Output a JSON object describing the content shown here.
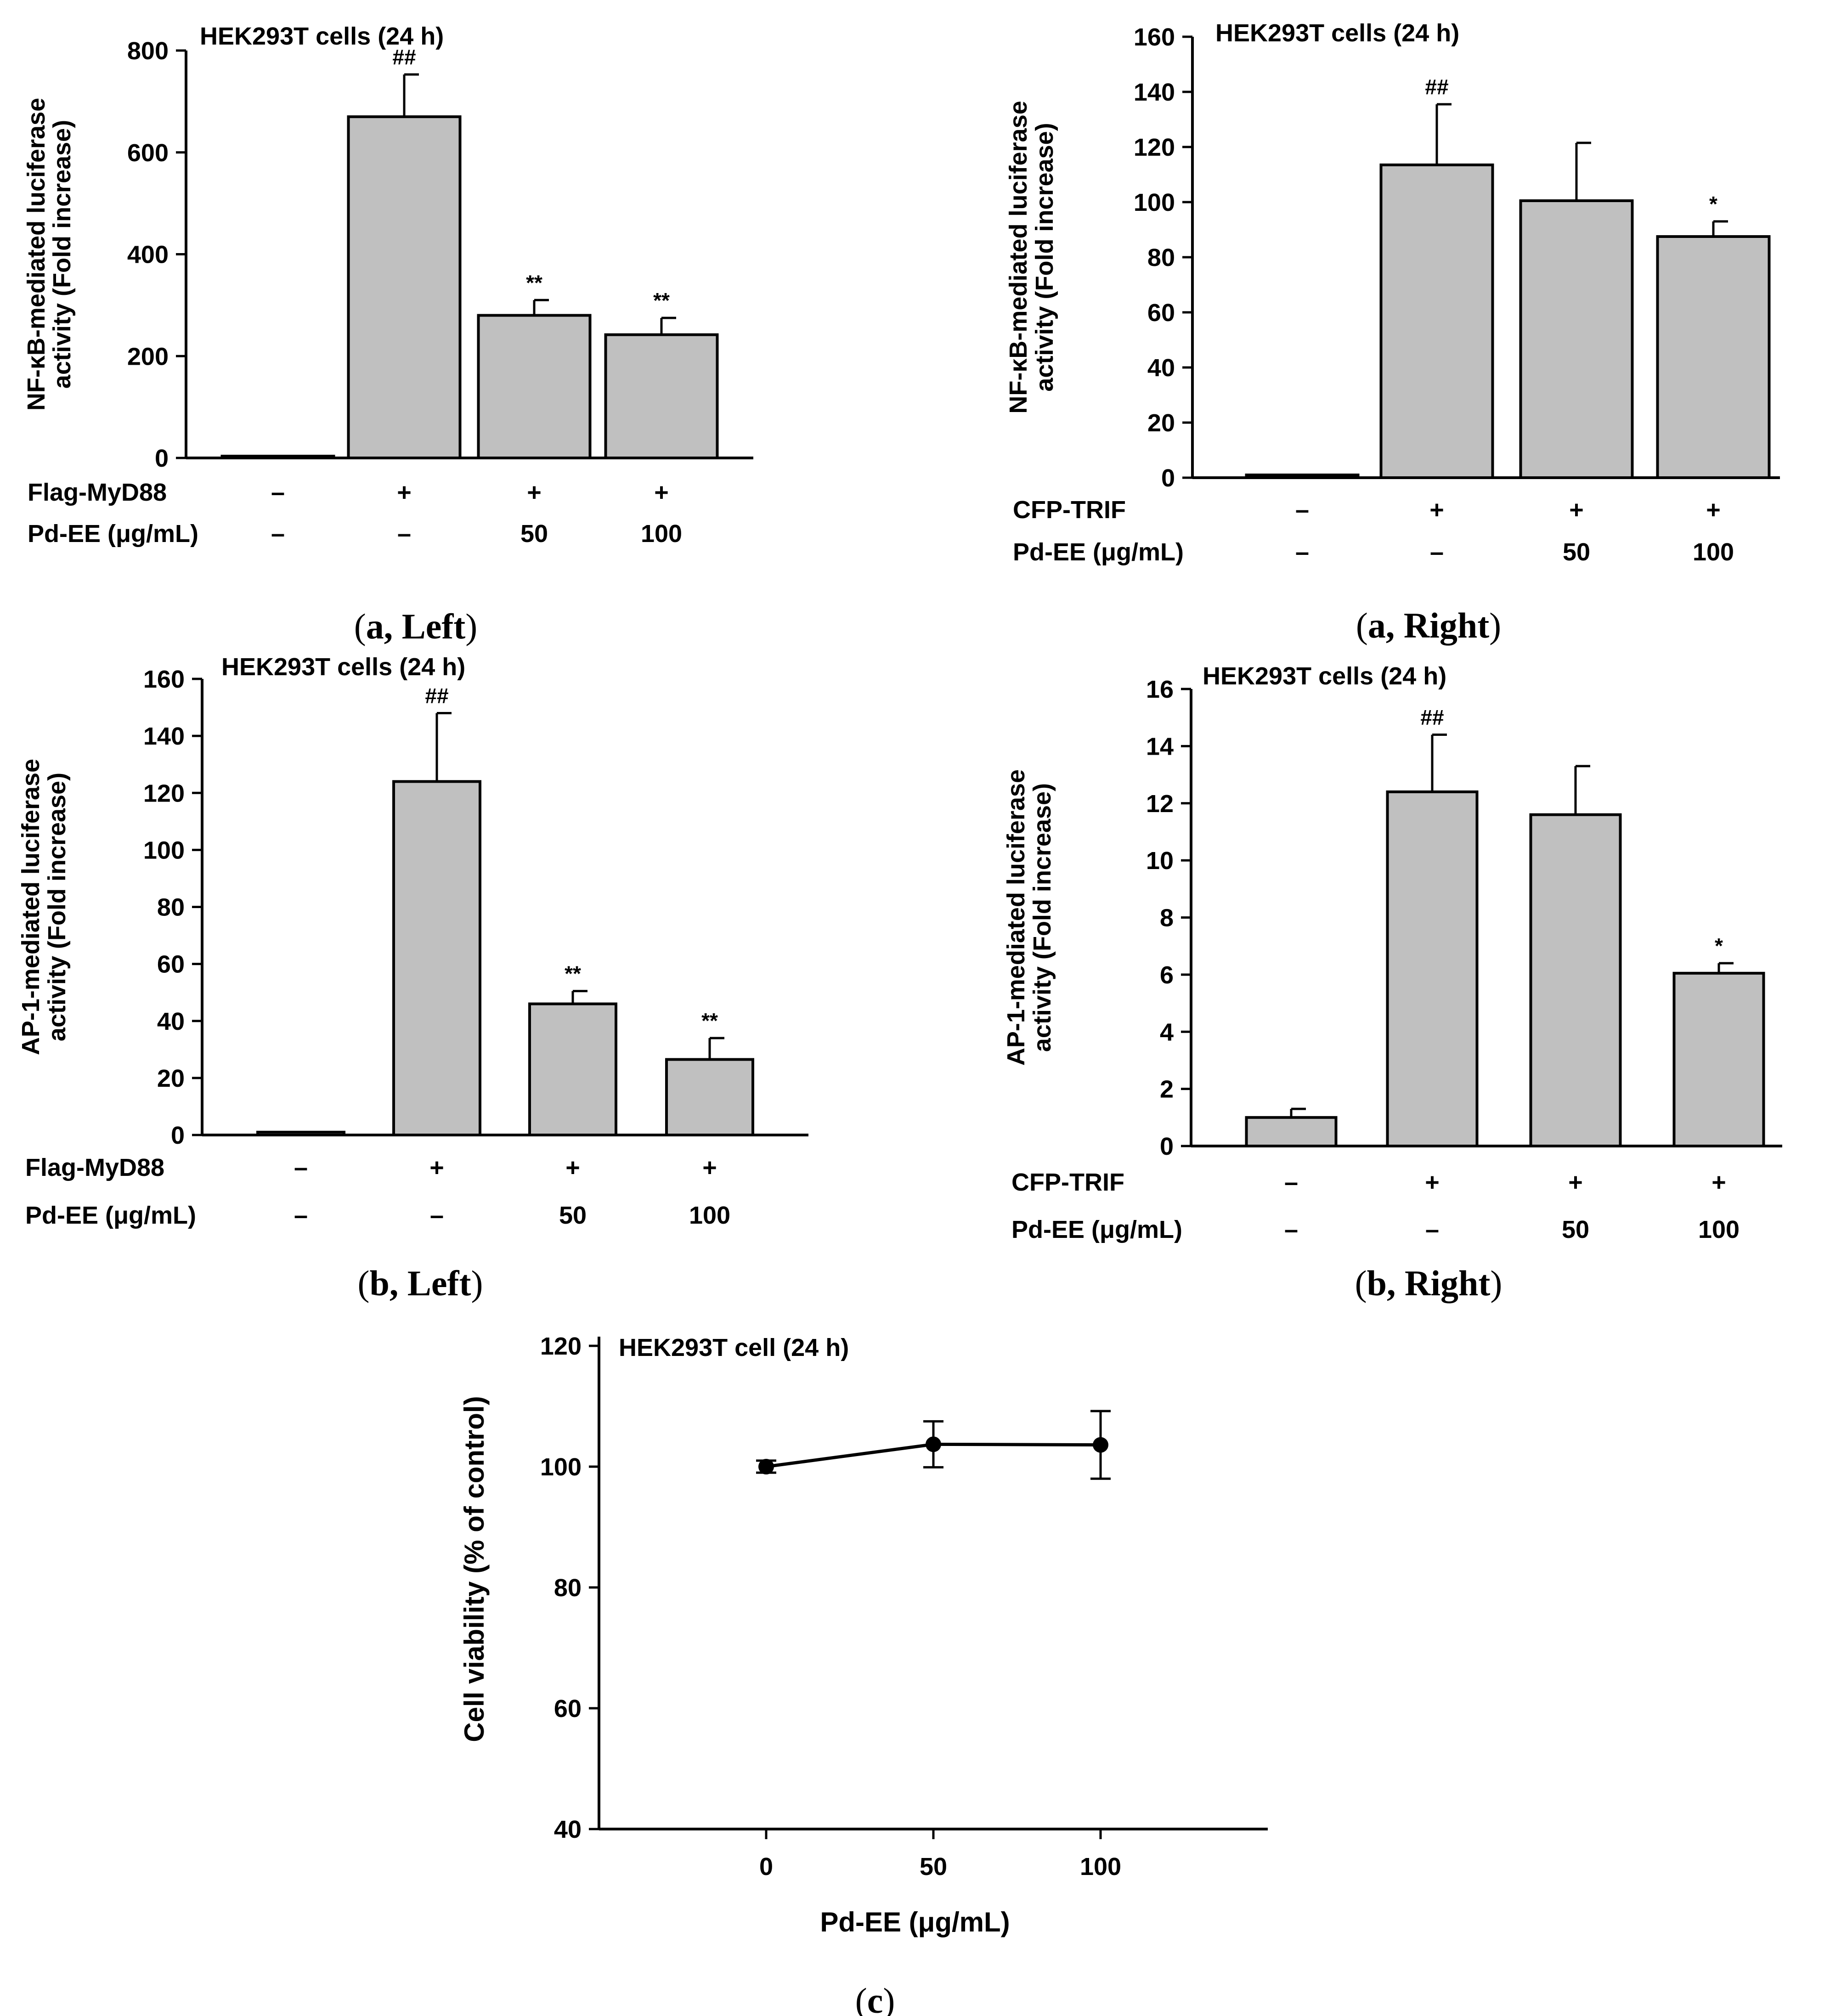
{
  "chart_data": [
    {
      "id": "aL",
      "type": "bar",
      "title": "HEK293T cells (24 h)",
      "ylabel": [
        "NF-κB-mediated luciferase",
        "activity (Fold increase)"
      ],
      "ylim": [
        0,
        800
      ],
      "yticks": [
        0,
        200,
        400,
        600,
        800
      ],
      "values": [
        1,
        670,
        280,
        242
      ],
      "errors": [
        0,
        83,
        30,
        33
      ],
      "significance": [
        "",
        "##",
        "**",
        "**"
      ],
      "row1_label": "Flag-MyD88",
      "row1": [
        "–",
        "+",
        "+",
        "+"
      ],
      "row2_label": "Pd-EE (μg/mL)",
      "row2": [
        "–",
        "–",
        "50",
        "100"
      ],
      "caption": {
        "open": "(",
        "letter": "a",
        "rest": ", Left",
        "close": ")"
      }
    },
    {
      "id": "aR",
      "type": "bar",
      "title": "HEK293T cells (24 h)",
      "ylabel": [
        "NF-κB-mediated luciferase",
        "activity (Fold increase)"
      ],
      "ylim": [
        0,
        160
      ],
      "yticks": [
        0,
        20,
        40,
        60,
        80,
        100,
        120,
        140,
        160
      ],
      "values": [
        1,
        113.5,
        100.5,
        87.5
      ],
      "errors": [
        0,
        22,
        21,
        5.5
      ],
      "significance": [
        "",
        "##",
        "",
        "*"
      ],
      "row1_label": "CFP-TRIF",
      "row1": [
        "–",
        "+",
        "+",
        "+"
      ],
      "row2_label": "Pd-EE (μg/mL)",
      "row2": [
        "–",
        "–",
        "50",
        "100"
      ],
      "caption": {
        "open": "(",
        "letter": "a",
        "rest": ", Right",
        "close": ")"
      }
    },
    {
      "id": "bL",
      "type": "bar",
      "title": "HEK293T cells (24 h)",
      "ylabel": [
        "AP-1-mediated luciferase",
        "activity (Fold increase)"
      ],
      "ylim": [
        0,
        160
      ],
      "yticks": [
        0,
        20,
        40,
        60,
        80,
        100,
        120,
        140,
        160
      ],
      "values": [
        1,
        124,
        46,
        26.5
      ],
      "errors": [
        0,
        24,
        4.5,
        7.5
      ],
      "significance": [
        "",
        "##",
        "**",
        "**"
      ],
      "row1_label": "Flag-MyD88",
      "row1": [
        "–",
        "+",
        "+",
        "+"
      ],
      "row2_label": "Pd-EE (μg/mL)",
      "row2": [
        "–",
        "–",
        "50",
        "100"
      ],
      "caption": {
        "open": "(",
        "letter": "b",
        "rest": ", Left",
        "close": ")"
      }
    },
    {
      "id": "bR",
      "type": "bar",
      "title": "HEK293T cells (24 h)",
      "ylabel": [
        "AP-1-mediated luciferase",
        "activity (Fold increase)"
      ],
      "ylim": [
        0,
        16
      ],
      "yticks": [
        0,
        2,
        4,
        6,
        8,
        10,
        12,
        14,
        16
      ],
      "values": [
        1,
        12.4,
        11.6,
        6.05
      ],
      "errors": [
        0.3,
        2,
        1.7,
        0.35
      ],
      "significance": [
        "",
        "##",
        "",
        "*"
      ],
      "row1_label": "CFP-TRIF",
      "row1": [
        "–",
        "+",
        "+",
        "+"
      ],
      "row2_label": "Pd-EE (μg/mL)",
      "row2": [
        "–",
        "–",
        "50",
        "100"
      ],
      "caption": {
        "open": "(",
        "letter": "b",
        "rest": ", Right",
        "close": ")"
      }
    },
    {
      "id": "c",
      "type": "line",
      "title": "HEK293T cell (24 h)",
      "ylabel": "Cell viability (% of control)",
      "xlabel": "Pd-EE (μg/mL)",
      "ylim": [
        40,
        120
      ],
      "yticks": [
        40,
        60,
        80,
        100,
        120
      ],
      "x": [
        0,
        50,
        100
      ],
      "xticklabels": [
        "0",
        "50",
        "100"
      ],
      "values": [
        100,
        103.7,
        103.6
      ],
      "errors": [
        1,
        3.8,
        5.6
      ],
      "caption": {
        "open": "(",
        "letter": "c",
        "close": ")"
      }
    }
  ]
}
